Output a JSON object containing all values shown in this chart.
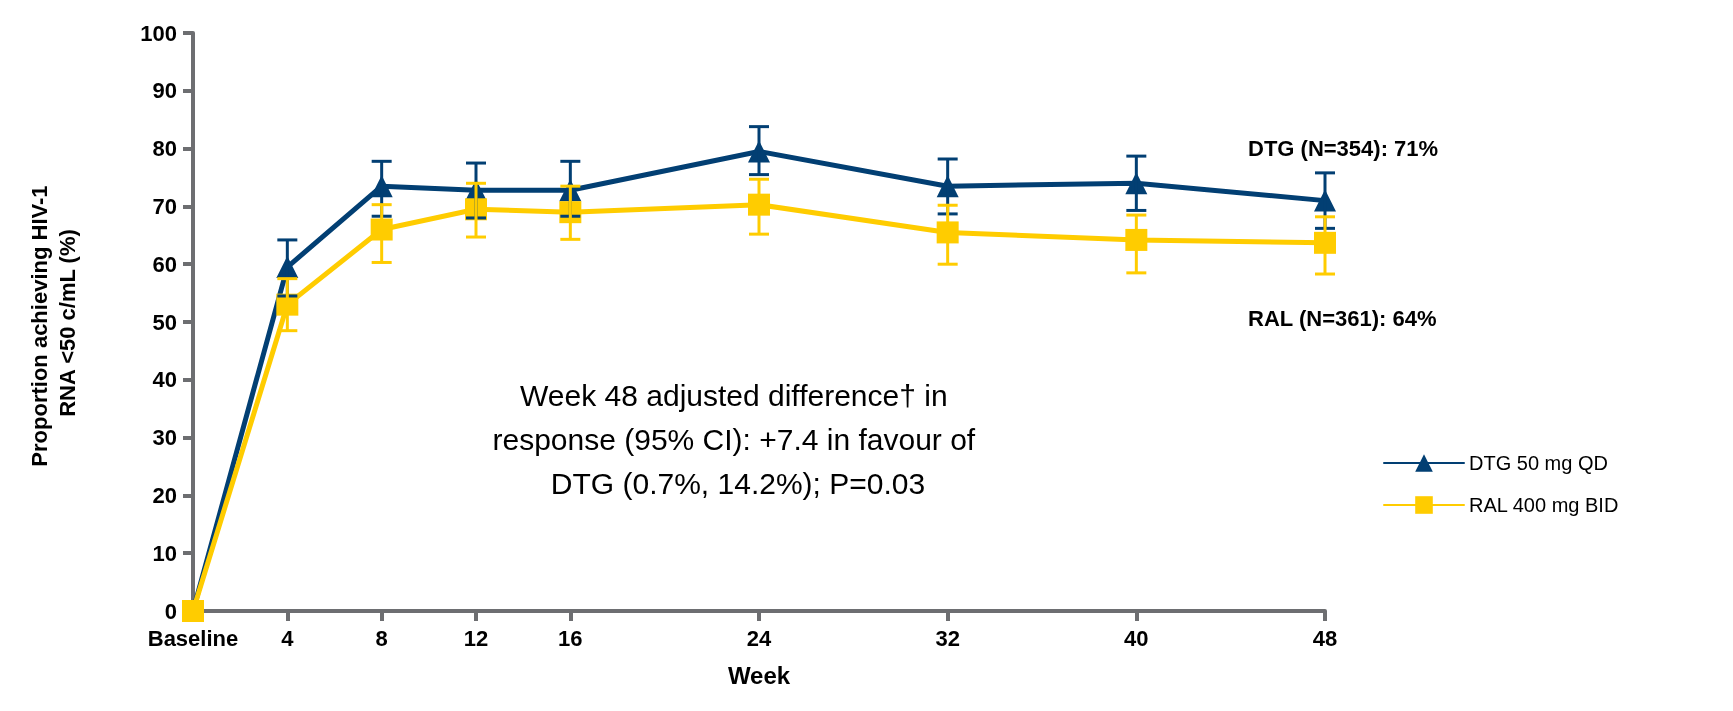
{
  "chart_data": {
    "type": "line",
    "xlabel": "Week",
    "ylabel": "Proportion achieving HIV-1 RNA <50 c/mL (%)",
    "x": [
      0,
      4,
      8,
      12,
      16,
      24,
      32,
      40,
      48
    ],
    "xlim": [
      0,
      48
    ],
    "xticks": [
      {
        "value": 0,
        "label": "Baseline"
      },
      4,
      8,
      12,
      16,
      24,
      32,
      40,
      48
    ],
    "ylim": [
      0,
      100
    ],
    "yticks": [
      0,
      10,
      20,
      30,
      40,
      50,
      60,
      70,
      80,
      90,
      100
    ],
    "series": [
      {
        "name": "DTG 50 mg QD",
        "color": "#023f73",
        "marker": "triangle",
        "values": [
          0,
          59.5,
          73.5,
          72.8,
          72.8,
          79.5,
          73.5,
          74,
          71
        ],
        "errors": [
          null,
          [
            54.5,
            64.2
          ],
          [
            68.3,
            77.8
          ],
          [
            68,
            77.5
          ],
          [
            68.3,
            77.8
          ],
          [
            75.5,
            83.8
          ],
          [
            68.7,
            78.2
          ],
          [
            69.3,
            78.7
          ],
          [
            66.2,
            75.8
          ]
        ]
      },
      {
        "name": "RAL 400 mg BID",
        "color": "#ffcc00",
        "marker": "square",
        "values": [
          0,
          53,
          66,
          69.5,
          69,
          70.3,
          65.5,
          64.2,
          63.7
        ],
        "errors": [
          null,
          [
            48.5,
            57.5
          ],
          [
            60.3,
            70.3
          ],
          [
            64.7,
            74
          ],
          [
            64.3,
            73.5
          ],
          [
            65.2,
            74.7
          ],
          [
            60,
            70.2
          ],
          [
            58.5,
            68.5
          ],
          [
            58.3,
            68.2
          ]
        ]
      }
    ],
    "annotations": [
      "DTG (N=354): 71%",
      "RAL (N=361): 64%",
      "Week 48 adjusted difference† in response (95% CI): +7.4 in favour of DTG (0.7%, 14.2%); P=0.03"
    ],
    "legend": "right",
    "grid": false,
    "line_style": "solid"
  }
}
